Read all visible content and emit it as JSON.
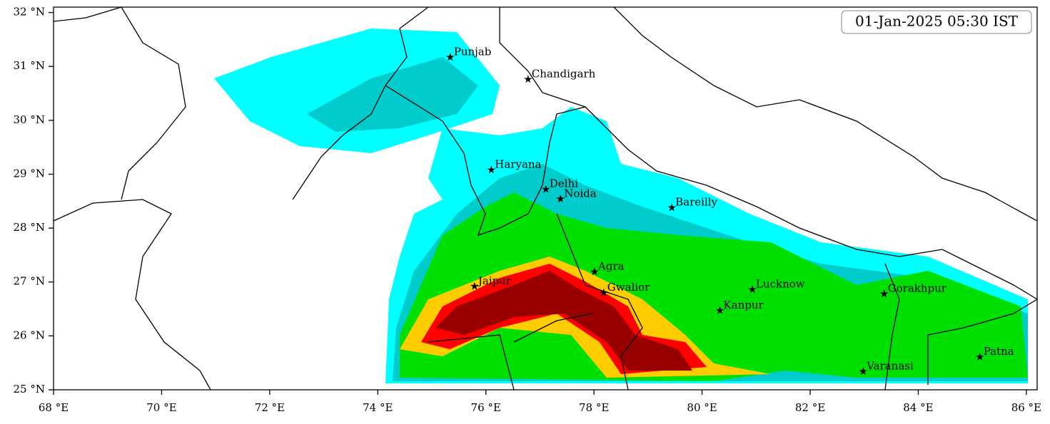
{
  "chart_data": {
    "type": "map",
    "title": "01-Jan-2025 05:30 IST",
    "xlim": [
      68,
      86.2
    ],
    "ylim": [
      25,
      32.1
    ],
    "xticks": [
      {
        "value": 68,
        "label": "68 °E"
      },
      {
        "value": 70,
        "label": "70 °E"
      },
      {
        "value": 72,
        "label": "72 °E"
      },
      {
        "value": 74,
        "label": "74 °E"
      },
      {
        "value": 76,
        "label": "76 °E"
      },
      {
        "value": 78,
        "label": "78 °E"
      },
      {
        "value": 80,
        "label": "80 °E"
      },
      {
        "value": 82,
        "label": "82 °E"
      },
      {
        "value": 84,
        "label": "84 °E"
      },
      {
        "value": 86,
        "label": "86 °E"
      }
    ],
    "yticks": [
      {
        "value": 25,
        "label": "25 °N"
      },
      {
        "value": 26,
        "label": "26 °N"
      },
      {
        "value": 27,
        "label": "27 °N"
      },
      {
        "value": 28,
        "label": "28 °N"
      },
      {
        "value": 29,
        "label": "29 °N"
      },
      {
        "value": 30,
        "label": "30 °N"
      },
      {
        "value": 31,
        "label": "31 °N"
      },
      {
        "value": 32,
        "label": "32 °N"
      }
    ],
    "cities": [
      {
        "name": "Punjab",
        "lon": 75.34,
        "lat": 31.17
      },
      {
        "name": "Chandigarh",
        "lon": 76.78,
        "lat": 30.76
      },
      {
        "name": "Haryana",
        "lon": 76.1,
        "lat": 29.08
      },
      {
        "name": "Delhi",
        "lon": 77.11,
        "lat": 28.72
      },
      {
        "name": "Noida",
        "lon": 77.38,
        "lat": 28.54
      },
      {
        "name": "Bareilly",
        "lon": 79.44,
        "lat": 28.38
      },
      {
        "name": "Agra",
        "lon": 78.01,
        "lat": 27.19
      },
      {
        "name": "Jaipur",
        "lon": 75.79,
        "lat": 26.92
      },
      {
        "name": "Gwalior",
        "lon": 78.18,
        "lat": 26.8
      },
      {
        "name": "Lucknow",
        "lon": 80.93,
        "lat": 26.86
      },
      {
        "name": "Gorakhpur",
        "lon": 83.37,
        "lat": 26.78
      },
      {
        "name": "Kanpur",
        "lon": 80.33,
        "lat": 26.47
      },
      {
        "name": "Varanasi",
        "lon": 82.98,
        "lat": 25.34
      },
      {
        "name": "Patna",
        "lon": 85.14,
        "lat": 25.61
      }
    ]
  }
}
